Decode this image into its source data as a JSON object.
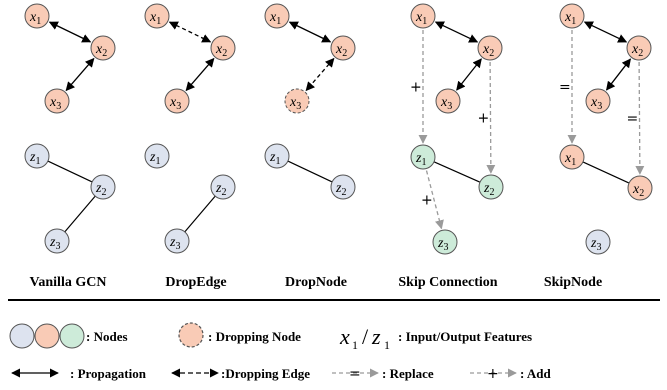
{
  "panels": [
    {
      "id": "vanilla-gcn",
      "label": "Vanilla GCN",
      "nodes": [
        {
          "id": "x1",
          "var": "x",
          "sub": "1",
          "type": "input",
          "state": "normal"
        },
        {
          "id": "x2",
          "var": "x",
          "sub": "2",
          "type": "input",
          "state": "normal"
        },
        {
          "id": "x3",
          "var": "x",
          "sub": "3",
          "type": "input",
          "state": "normal"
        },
        {
          "id": "z1",
          "var": "z",
          "sub": "1",
          "type": "output",
          "state": "normal"
        },
        {
          "id": "z2",
          "var": "z",
          "sub": "2",
          "type": "output",
          "state": "normal"
        },
        {
          "id": "z3",
          "var": "z",
          "sub": "3",
          "type": "output",
          "state": "normal"
        }
      ],
      "edges": [
        {
          "from": "x1",
          "to": "x2",
          "kind": "propagation"
        },
        {
          "from": "x2",
          "to": "x3",
          "kind": "propagation"
        },
        {
          "from": "z1",
          "to": "z2",
          "kind": "line"
        },
        {
          "from": "z2",
          "to": "z3",
          "kind": "line"
        }
      ]
    },
    {
      "id": "dropedge",
      "label": "DropEdge",
      "nodes": [
        {
          "id": "x1",
          "var": "x",
          "sub": "1",
          "type": "input",
          "state": "normal"
        },
        {
          "id": "x2",
          "var": "x",
          "sub": "2",
          "type": "input",
          "state": "normal"
        },
        {
          "id": "x3",
          "var": "x",
          "sub": "3",
          "type": "input",
          "state": "normal"
        },
        {
          "id": "z1",
          "var": "z",
          "sub": "1",
          "type": "output",
          "state": "normal"
        },
        {
          "id": "z2",
          "var": "z",
          "sub": "2",
          "type": "output",
          "state": "normal"
        },
        {
          "id": "z3",
          "var": "z",
          "sub": "3",
          "type": "output",
          "state": "normal"
        }
      ],
      "edges": [
        {
          "from": "x1",
          "to": "x2",
          "kind": "dropping-edge"
        },
        {
          "from": "x2",
          "to": "x3",
          "kind": "propagation"
        },
        {
          "from": "z2",
          "to": "z3",
          "kind": "line"
        }
      ]
    },
    {
      "id": "dropnode",
      "label": "DropNode",
      "nodes": [
        {
          "id": "x1",
          "var": "x",
          "sub": "1",
          "type": "input",
          "state": "normal"
        },
        {
          "id": "x2",
          "var": "x",
          "sub": "2",
          "type": "input",
          "state": "normal"
        },
        {
          "id": "x3",
          "var": "x",
          "sub": "3",
          "type": "input",
          "state": "dropped"
        },
        {
          "id": "z1",
          "var": "z",
          "sub": "1",
          "type": "output",
          "state": "normal"
        },
        {
          "id": "z2",
          "var": "z",
          "sub": "2",
          "type": "output",
          "state": "normal"
        }
      ],
      "edges": [
        {
          "from": "x1",
          "to": "x2",
          "kind": "propagation"
        },
        {
          "from": "x2",
          "to": "x3",
          "kind": "dropping-edge"
        },
        {
          "from": "z1",
          "to": "z2",
          "kind": "line"
        }
      ]
    },
    {
      "id": "skip-connection",
      "label": "Skip Connection",
      "nodes": [
        {
          "id": "x1",
          "var": "x",
          "sub": "1",
          "type": "input",
          "state": "normal"
        },
        {
          "id": "x2",
          "var": "x",
          "sub": "2",
          "type": "input",
          "state": "normal"
        },
        {
          "id": "x3",
          "var": "x",
          "sub": "3",
          "type": "input",
          "state": "normal"
        },
        {
          "id": "z1",
          "var": "z",
          "sub": "1",
          "type": "added",
          "state": "normal"
        },
        {
          "id": "z2",
          "var": "z",
          "sub": "2",
          "type": "added",
          "state": "normal"
        },
        {
          "id": "z3",
          "var": "z",
          "sub": "3",
          "type": "added",
          "state": "normal"
        }
      ],
      "edges": [
        {
          "from": "x1",
          "to": "x2",
          "kind": "propagation"
        },
        {
          "from": "x2",
          "to": "x3",
          "kind": "propagation"
        },
        {
          "from": "z1",
          "to": "z2",
          "kind": "line"
        },
        {
          "from": "x1",
          "to": "z1",
          "kind": "add",
          "op": "+"
        },
        {
          "from": "x2",
          "to": "z2",
          "kind": "add",
          "op": "+"
        },
        {
          "from": "z1",
          "to": "z3",
          "kind": "add",
          "op": "+"
        }
      ]
    },
    {
      "id": "skipnode",
      "label": "SkipNode",
      "nodes": [
        {
          "id": "x1",
          "var": "x",
          "sub": "1",
          "type": "input",
          "state": "normal"
        },
        {
          "id": "x2",
          "var": "x",
          "sub": "2",
          "type": "input",
          "state": "normal"
        },
        {
          "id": "x3",
          "var": "x",
          "sub": "3",
          "type": "input",
          "state": "normal"
        },
        {
          "id": "z1",
          "var": "x",
          "sub": "1",
          "type": "input",
          "state": "normal"
        },
        {
          "id": "z2",
          "var": "x",
          "sub": "2",
          "type": "input",
          "state": "normal"
        },
        {
          "id": "z3",
          "var": "z",
          "sub": "3",
          "type": "output",
          "state": "normal"
        }
      ],
      "edges": [
        {
          "from": "x1",
          "to": "x2",
          "kind": "propagation"
        },
        {
          "from": "x2",
          "to": "x3",
          "kind": "propagation"
        },
        {
          "from": "z1",
          "to": "z2",
          "kind": "line"
        },
        {
          "from": "x1",
          "to": "z1",
          "kind": "replace",
          "op": "="
        },
        {
          "from": "x2",
          "to": "z2",
          "kind": "replace",
          "op": "="
        }
      ]
    }
  ],
  "legend": {
    "nodes_label": ": Nodes",
    "dropping_node_label": ": Dropping Node",
    "io_symbol_x": "x",
    "io_symbol_x_sub": "1",
    "io_symbol_sep": "/",
    "io_symbol_z": "z",
    "io_symbol_z_sub": "1",
    "io_label": ": Input/Output  Features",
    "propagation_label": ": Propagation",
    "dropping_edge_label": ":Dropping  Edge",
    "replace_op": "=",
    "replace_label": ": Replace",
    "add_op": "+",
    "add_label": ": Add"
  },
  "colors": {
    "input": "#f9cbb6",
    "output": "#dde3ef",
    "added": "#cdebd9",
    "stroke": "#555555",
    "dashed_arrow": "#9a9a9a",
    "edge": "#000000"
  }
}
